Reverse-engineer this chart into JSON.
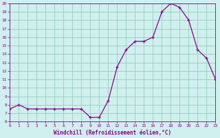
{
  "hours": [
    0,
    1,
    2,
    3,
    4,
    5,
    6,
    7,
    8,
    9,
    10,
    11,
    12,
    13,
    14,
    15,
    16,
    17,
    18,
    19,
    20,
    21,
    22,
    23
  ],
  "values": [
    7.5,
    8.0,
    7.5,
    7.5,
    7.5,
    7.5,
    7.5,
    7.5,
    7.5,
    6.5,
    6.5,
    8.5,
    12.5,
    14.5,
    15.5,
    15.5,
    16.0,
    19.0,
    20.0,
    19.5,
    18.0,
    14.5,
    13.5,
    11.0
  ],
  "xlim": [
    0,
    23
  ],
  "ylim": [
    6,
    20
  ],
  "yticks": [
    6,
    7,
    8,
    9,
    10,
    11,
    12,
    13,
    14,
    15,
    16,
    17,
    18,
    19,
    20
  ],
  "xticks": [
    0,
    1,
    2,
    3,
    4,
    5,
    6,
    7,
    8,
    9,
    10,
    11,
    12,
    13,
    14,
    15,
    16,
    17,
    18,
    19,
    20,
    21,
    22,
    23
  ],
  "xlabel": "Windchill (Refroidissement éolien,°C)",
  "line_color": "#880088",
  "marker": "+",
  "bg_color": "#cff0ee",
  "grid_color": "#99ccbb",
  "axis_label_color": "#880088",
  "tick_color": "#880088",
  "figsize": [
    3.2,
    2.0
  ],
  "dpi": 100
}
